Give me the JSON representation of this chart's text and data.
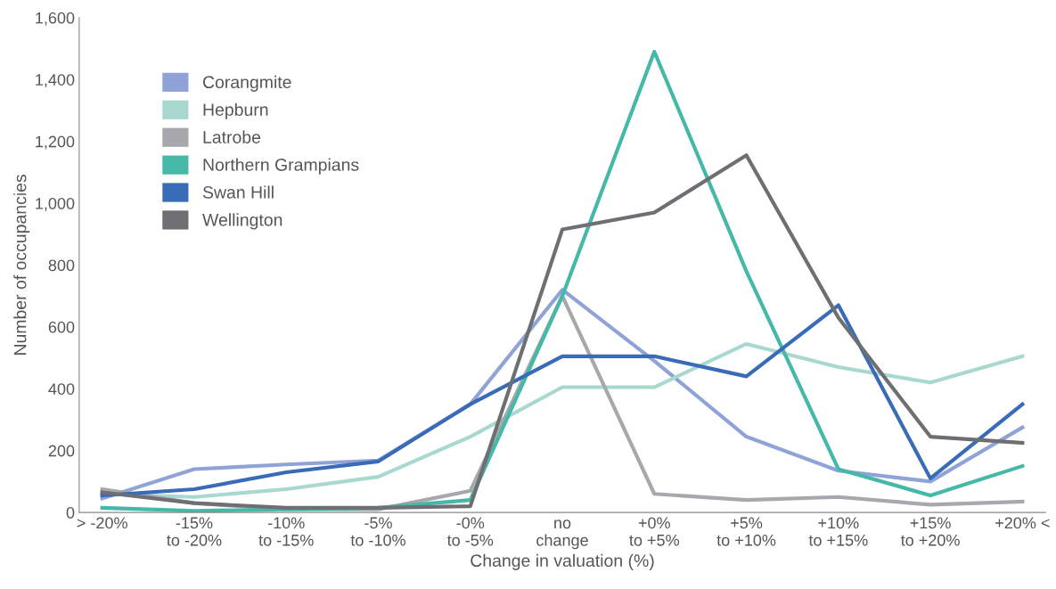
{
  "chart_data": {
    "type": "line",
    "xlabel": "Change in valuation (%)",
    "ylabel": "Number of occupancies",
    "categories": [
      "> -20%",
      "-15%\nto -20%",
      "-10%\nto -15%",
      "-5%\nto -10%",
      "-0%\nto -5%",
      "no\nchange",
      "+0%\nto +5%",
      "+5%\nto +10%",
      "+10%\nto +15%",
      "+15%\nto +20%",
      "+20% <"
    ],
    "series": [
      {
        "name": "Corangmite",
        "color": "#8fa3d6",
        "values": [
          45,
          140,
          155,
          168,
          350,
          720,
          490,
          245,
          135,
          100,
          275
        ]
      },
      {
        "name": "Hepburn",
        "color": "#a8d8d0",
        "values": [
          60,
          50,
          75,
          115,
          245,
          405,
          405,
          545,
          470,
          420,
          505
        ]
      },
      {
        "name": "Latrobe",
        "color": "#a7a8ab",
        "values": [
          75,
          30,
          10,
          10,
          70,
          700,
          60,
          40,
          50,
          25,
          35
        ]
      },
      {
        "name": "Northern Grampians",
        "color": "#45b8a8",
        "values": [
          15,
          5,
          10,
          15,
          40,
          700,
          1490,
          780,
          140,
          55,
          150
        ]
      },
      {
        "name": "Swan Hill",
        "color": "#3a6bb8",
        "values": [
          55,
          75,
          130,
          165,
          350,
          505,
          505,
          440,
          670,
          110,
          350
        ]
      },
      {
        "name": "Wellington",
        "color": "#6e6f73",
        "values": [
          65,
          30,
          15,
          15,
          20,
          915,
          970,
          1155,
          630,
          245,
          225
        ]
      }
    ],
    "ylim": [
      0,
      1600
    ],
    "yticks": [
      0,
      200,
      400,
      600,
      800,
      {
        "value": 1000,
        "label": "1,000"
      },
      {
        "value": 1200,
        "label": "1,200"
      },
      {
        "value": 1400,
        "label": "1,400"
      },
      {
        "value": 1600,
        "label": "1,600"
      }
    ],
    "grid": false,
    "legend": "top left",
    "marker": "none",
    "line_style": "solid"
  }
}
